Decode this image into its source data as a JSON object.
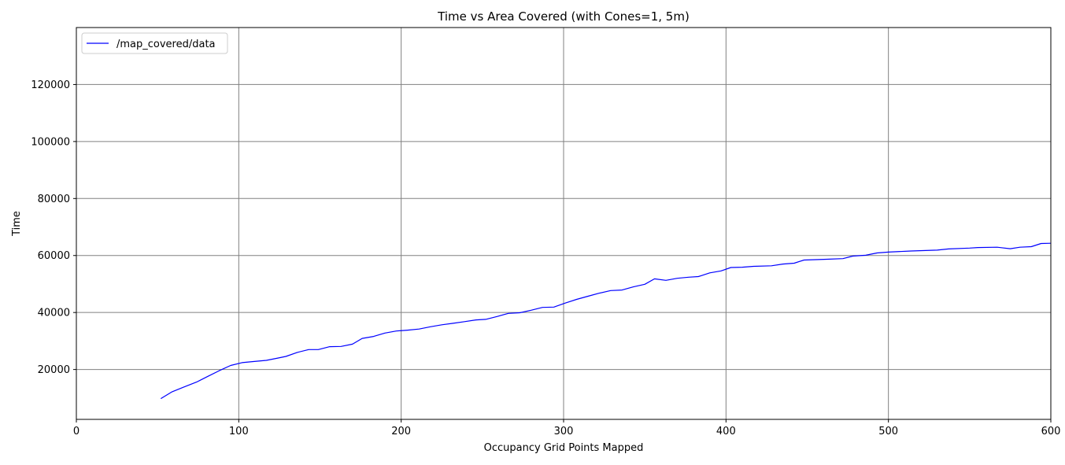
{
  "chart_data": {
    "type": "line",
    "title": "Time vs Area Covered (with Cones=1, 5m)",
    "xlabel": "Occupancy Grid Points Mapped",
    "ylabel": "Time",
    "xlim": [
      0,
      600
    ],
    "ylim": [
      2500,
      140000
    ],
    "xticks": [
      0,
      100,
      200,
      300,
      400,
      500,
      600
    ],
    "yticks": [
      20000,
      40000,
      60000,
      80000,
      100000,
      120000
    ],
    "xtick_labels": [
      "0",
      "100",
      "200",
      "300",
      "400",
      "500",
      "600"
    ],
    "ytick_labels": [
      "20000",
      "40000",
      "60000",
      "80000",
      "100000",
      "120000"
    ],
    "grid": true,
    "legend_position": "top-left",
    "series": [
      {
        "name": "/map_covered/data",
        "color": "#0000ff",
        "x": [
          52,
          59,
          66,
          74,
          81,
          88,
          95,
          102,
          109,
          117,
          124,
          129,
          136,
          143,
          149,
          156,
          163,
          170,
          176,
          183,
          190,
          197,
          204,
          211,
          218,
          225,
          232,
          239,
          246,
          252,
          259,
          266,
          273,
          280,
          287,
          294,
          301,
          308,
          315,
          322,
          329,
          336,
          343,
          350,
          356,
          363,
          370,
          377,
          383,
          390,
          397,
          403,
          410,
          417,
          428,
          435,
          442,
          448,
          462,
          472,
          478,
          486,
          493,
          500,
          514,
          530,
          537,
          550,
          555,
          567,
          575,
          581,
          588,
          594,
          600
        ],
        "y": [
          9800,
          12200,
          13800,
          15600,
          17600,
          19600,
          21400,
          22400,
          22800,
          23200,
          24000,
          24600,
          26000,
          27000,
          27000,
          28000,
          28100,
          28900,
          30900,
          31600,
          32800,
          33500,
          33800,
          34200,
          35000,
          35700,
          36200,
          36800,
          37400,
          37600,
          38600,
          39700,
          39900,
          40800,
          41800,
          41900,
          43300,
          44600,
          45700,
          46800,
          47700,
          47900,
          49000,
          49900,
          51800,
          51300,
          52000,
          52400,
          52600,
          53900,
          54600,
          55800,
          55900,
          56200,
          56400,
          57000,
          57300,
          58400,
          58700,
          58900,
          59800,
          60100,
          60900,
          61200,
          61600,
          61900,
          62300,
          62600,
          62800,
          62900,
          62400,
          62900,
          63100,
          64200,
          64300
        ]
      }
    ]
  }
}
